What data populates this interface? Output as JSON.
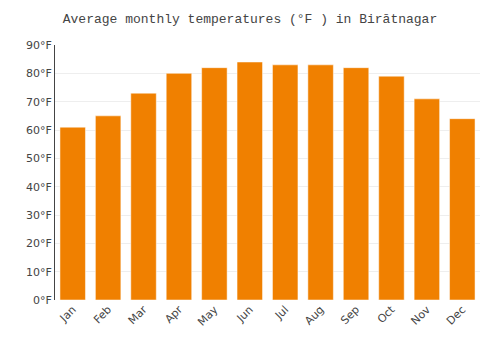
{
  "chart_data": {
    "type": "bar",
    "title": "Average monthly temperatures (°F ) in Birātnagar",
    "categories": [
      "Jan",
      "Feb",
      "Mar",
      "Apr",
      "May",
      "Jun",
      "Jul",
      "Aug",
      "Sep",
      "Oct",
      "Nov",
      "Dec"
    ],
    "values": [
      61,
      65,
      73,
      80,
      82,
      84,
      83,
      83,
      82,
      79,
      71,
      64
    ],
    "color": "#F08000",
    "ylim": [
      0,
      90
    ],
    "yticks": [
      {
        "value": 0,
        "label": "0°F"
      },
      {
        "value": 10,
        "label": "10°F"
      },
      {
        "value": 20,
        "label": "20°F"
      },
      {
        "value": 30,
        "label": "30°F"
      },
      {
        "value": 40,
        "label": "40°F"
      },
      {
        "value": 50,
        "label": "50°F"
      },
      {
        "value": 60,
        "label": "60°F"
      },
      {
        "value": 70,
        "label": "70°F"
      },
      {
        "value": 80,
        "label": "80°F"
      },
      {
        "value": 90,
        "label": "90°F"
      }
    ],
    "grid": true
  }
}
